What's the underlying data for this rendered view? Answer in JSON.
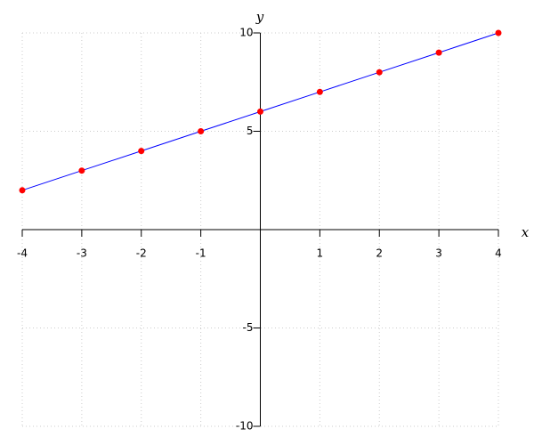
{
  "chart_data": {
    "type": "line",
    "x_label": "x",
    "y_label": "y",
    "x": [
      -4,
      -3,
      -2,
      -1,
      0,
      1,
      2,
      3,
      4
    ],
    "values": [
      2,
      3,
      4,
      5,
      6,
      7,
      8,
      9,
      10
    ],
    "line_color": "#0000ff",
    "marker_color": "#ff0000",
    "xlim": [
      -4,
      4
    ],
    "ylim": [
      -10,
      10
    ],
    "xticks": [
      -4,
      -3,
      -2,
      -1,
      1,
      2,
      3,
      4
    ],
    "yticks": [
      -10,
      -5,
      5,
      10
    ],
    "grid": true
  }
}
